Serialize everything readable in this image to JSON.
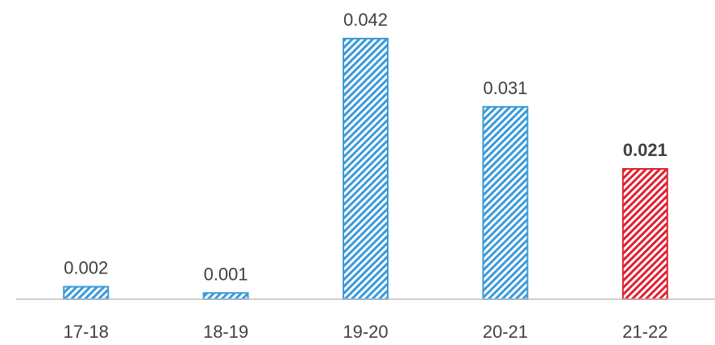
{
  "chart_data": {
    "type": "bar",
    "categories": [
      "17-18",
      "18-19",
      "19-20",
      "20-21",
      "21-22"
    ],
    "values": [
      0.002,
      0.001,
      0.042,
      0.031,
      0.021
    ],
    "value_labels": [
      "0.002",
      "0.001",
      "0.042",
      "0.031",
      "0.021"
    ],
    "highlight_index": 4,
    "ylim": [
      0,
      0.042
    ],
    "grid": false,
    "legend": "none",
    "pattern": "diagonal-hatch",
    "colors": {
      "default": "#3a9ad9",
      "highlight": "#e02030",
      "axis": "#bfbfbf",
      "text": "#404040"
    }
  }
}
